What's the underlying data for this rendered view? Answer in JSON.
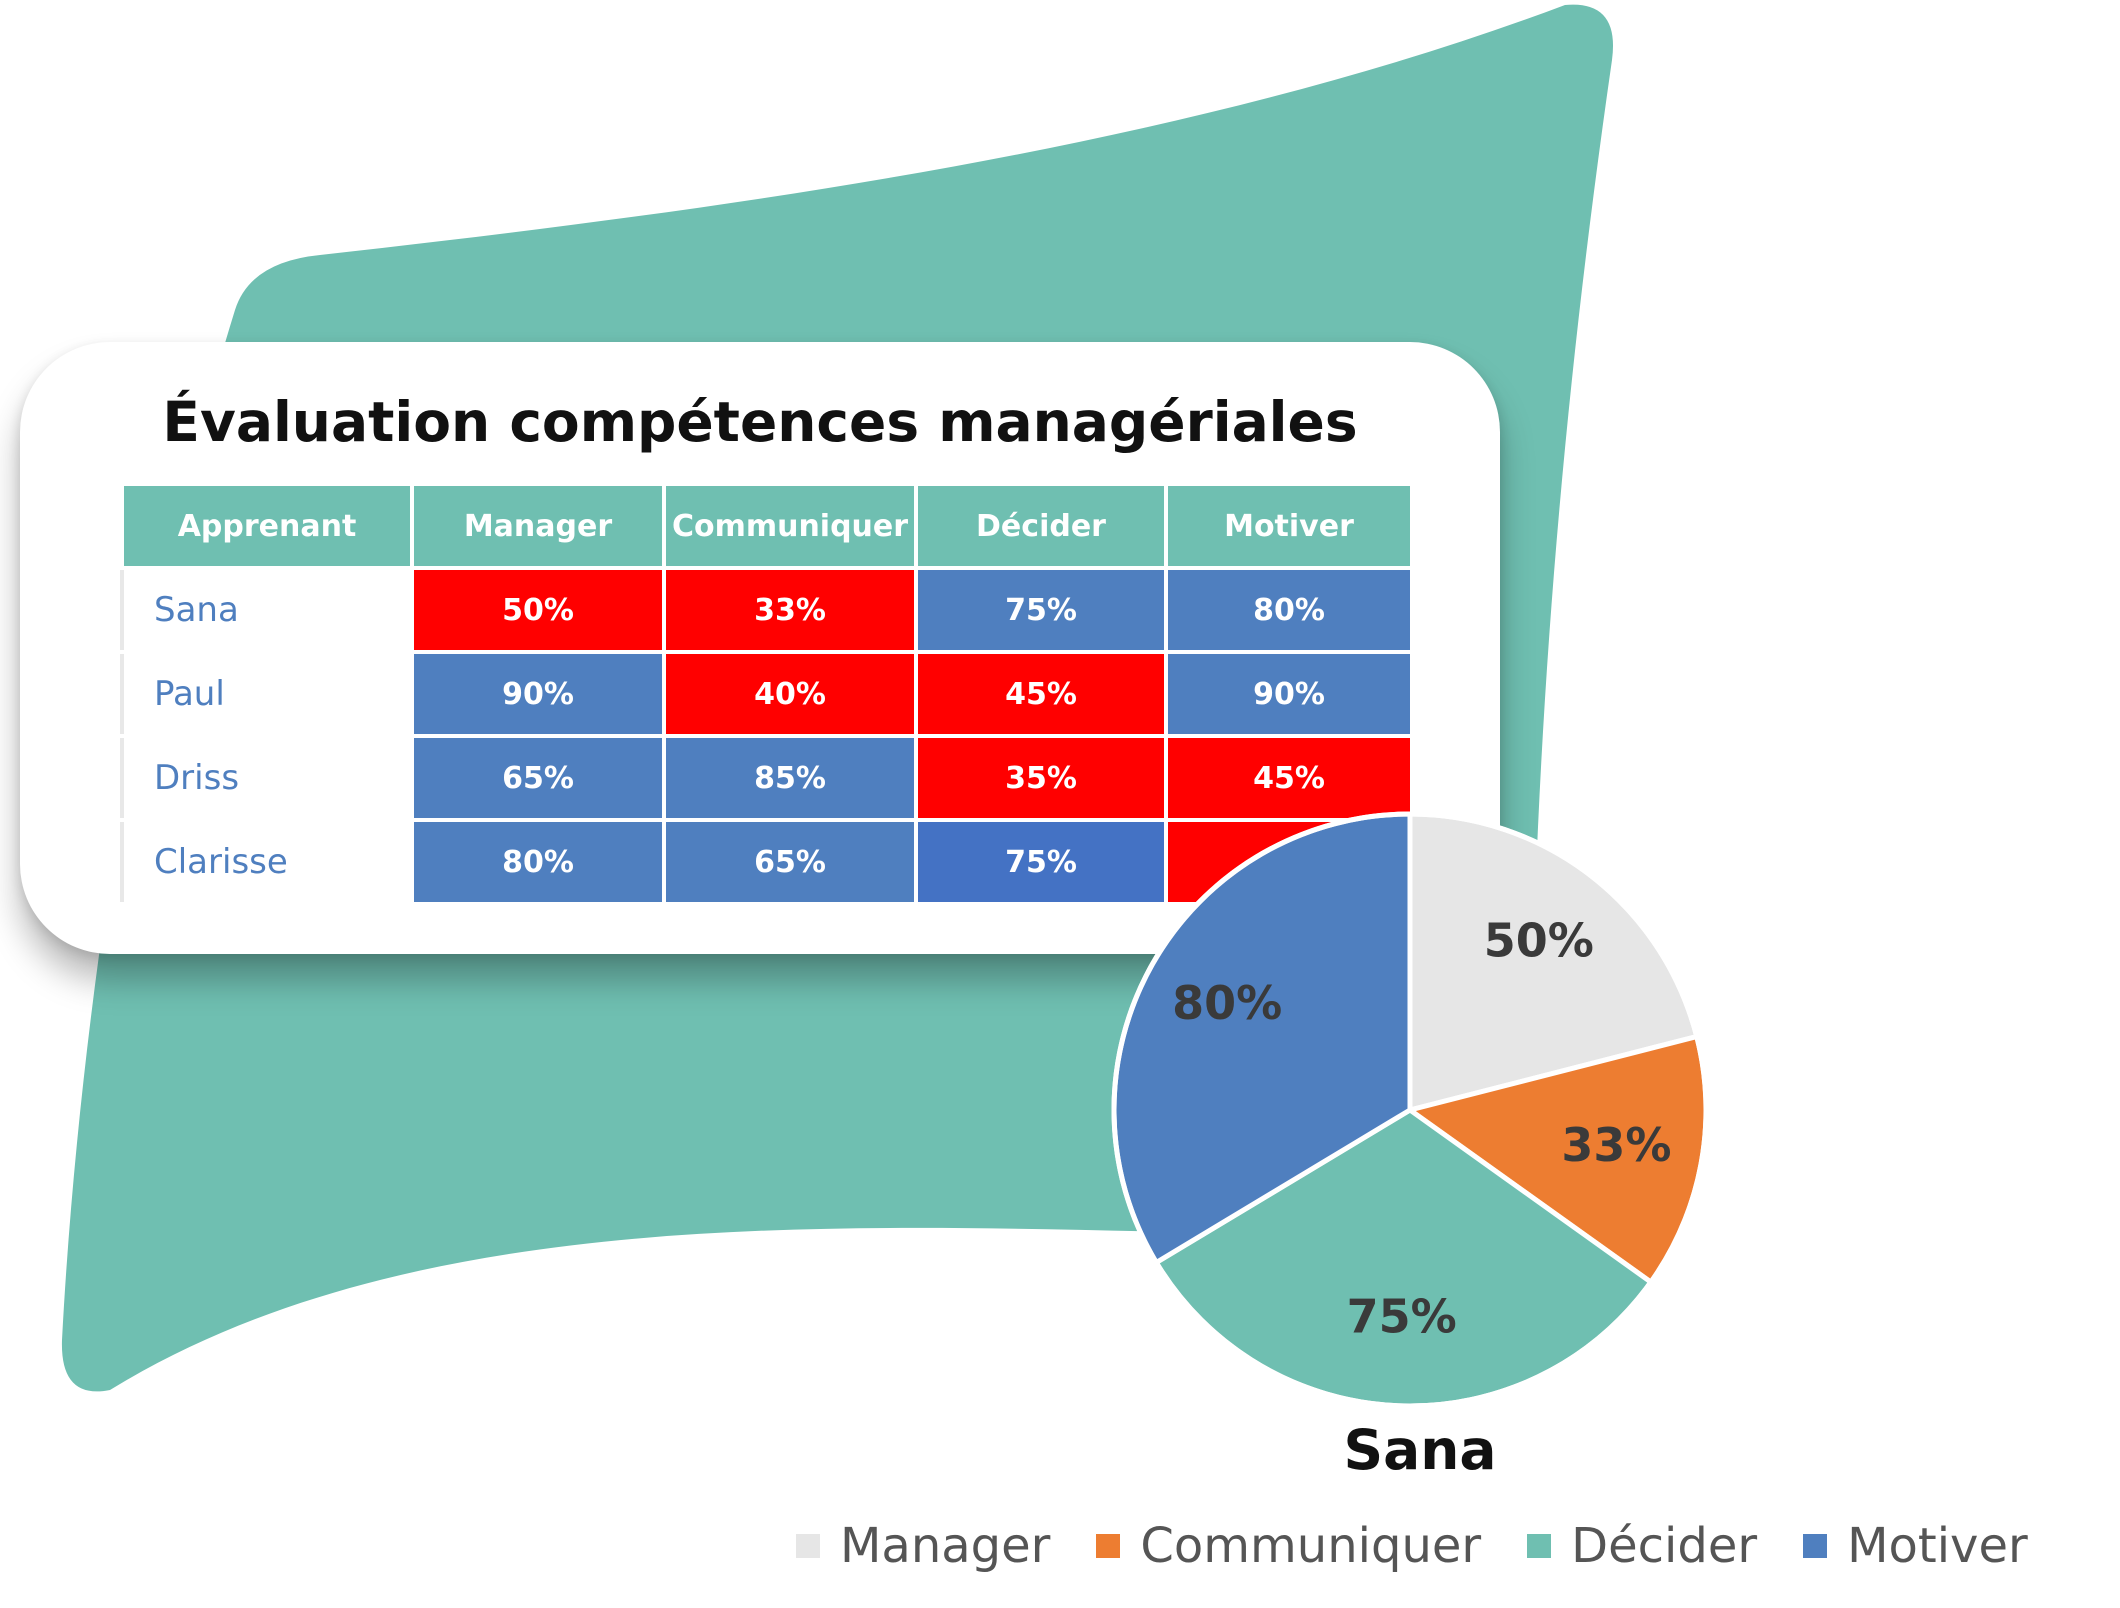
{
  "colors": {
    "teal": "#6fbfb1",
    "low_red": "#ff0000",
    "high_blue": "#4f7fbf",
    "highlight_blue": "#4472c4",
    "name_text": "#4f7fbf",
    "manager": "#e6e6e6",
    "communiquer": "#ed7d31",
    "decider": "#6fbfb1",
    "motiver": "#4f7fbf"
  },
  "card": {
    "title": "Évaluation compétences managériales"
  },
  "table": {
    "headers": [
      "Apprenant",
      "Manager",
      "Communiquer",
      "Décider",
      "Motiver"
    ],
    "rows": [
      {
        "name": "Sana",
        "cells": [
          {
            "text": "50%",
            "color": "#ff0000"
          },
          {
            "text": "33%",
            "color": "#ff0000"
          },
          {
            "text": "75%",
            "color": "#4f7fbf"
          },
          {
            "text": "80%",
            "color": "#4f7fbf"
          }
        ]
      },
      {
        "name": "Paul",
        "cells": [
          {
            "text": "90%",
            "color": "#4f7fbf"
          },
          {
            "text": "40%",
            "color": "#ff0000"
          },
          {
            "text": "45%",
            "color": "#ff0000"
          },
          {
            "text": "90%",
            "color": "#4f7fbf"
          }
        ]
      },
      {
        "name": "Driss",
        "cells": [
          {
            "text": "65%",
            "color": "#4f7fbf"
          },
          {
            "text": "85%",
            "color": "#4f7fbf"
          },
          {
            "text": "35%",
            "color": "#ff0000"
          },
          {
            "text": "45%",
            "color": "#ff0000"
          }
        ]
      },
      {
        "name": "Clarisse",
        "cells": [
          {
            "text": "80%",
            "color": "#4f7fbf"
          },
          {
            "text": "65%",
            "color": "#4f7fbf"
          },
          {
            "text": "75%",
            "color": "#4472c4"
          },
          {
            "text": "",
            "color": "#ff0000"
          }
        ]
      }
    ]
  },
  "chart_data": {
    "type": "pie",
    "title": "Sana",
    "categories": [
      "Manager",
      "Communiquer",
      "Décider",
      "Motiver"
    ],
    "values": [
      50,
      33,
      75,
      80
    ],
    "labels": [
      "50%",
      "33%",
      "75%",
      "80%"
    ],
    "colors": [
      "#e6e6e6",
      "#ed7d31",
      "#6fbfb1",
      "#4f7fbf"
    ],
    "legend_position": "bottom"
  }
}
